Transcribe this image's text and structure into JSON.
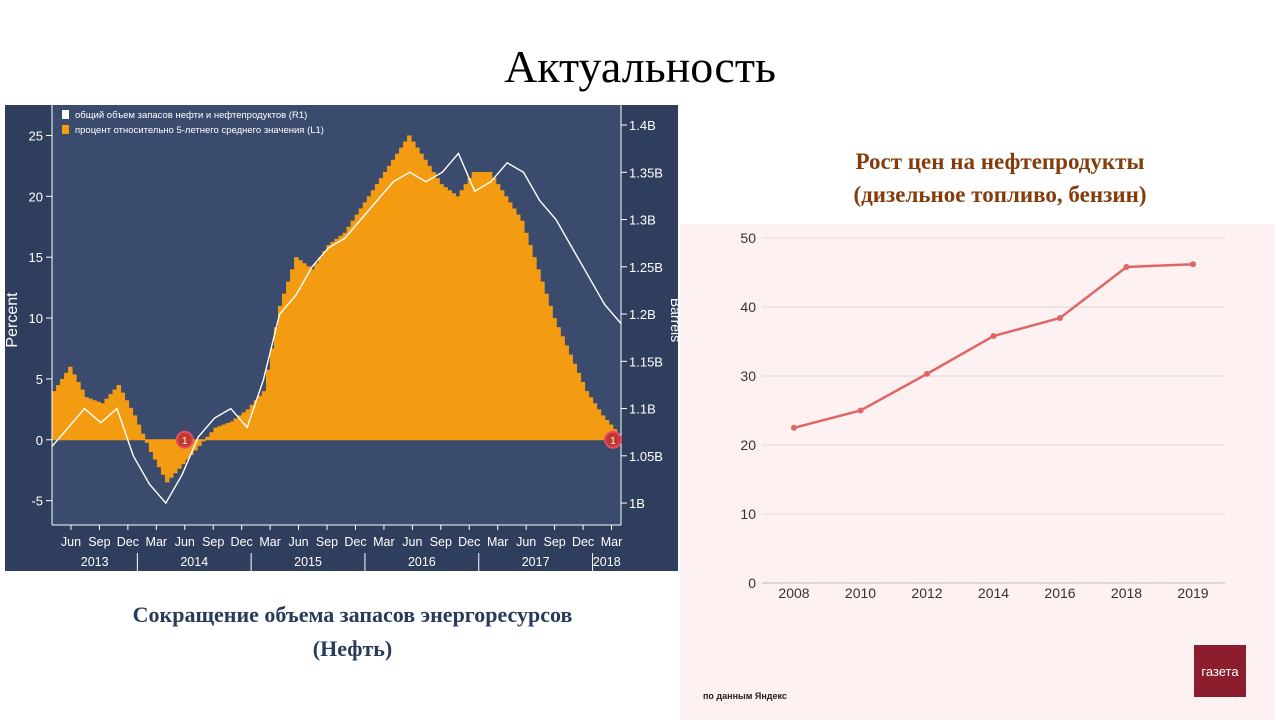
{
  "slide": {
    "title": "Актуальность",
    "left_caption_line1": "Сокращение объема запасов энергоресурсов",
    "left_caption_line2": "(Нефть)",
    "right_title_line1": "Рост цен на нефтепродукты",
    "right_title_line2": "(дизельное топливо, бензин)",
    "right_source": "по данным Яндекс",
    "logo_text": "газета"
  },
  "chart_data": [
    {
      "type": "bar",
      "title": "",
      "ylabel": "Percent",
      "y2label": "Barrels",
      "ylim": [
        -7,
        27.5
      ],
      "y2lim": [
        0.9768,
        1.4212
      ],
      "y_ticks": [
        "25",
        "20",
        "15",
        "10",
        "5",
        "0",
        "-5"
      ],
      "y_tick_values": [
        25,
        20,
        15,
        10,
        5,
        0,
        -5
      ],
      "y2_ticks": [
        "1.4B",
        "1.35B",
        "1.3B",
        "1.25B",
        "1.2B",
        "1.15B",
        "1.1B",
        "1.05B",
        "1B"
      ],
      "y2_tick_values": [
        1.4,
        1.35,
        1.3,
        1.25,
        1.2,
        1.15,
        1.1,
        1.05,
        1.0
      ],
      "x_month_labels": [
        "Jun",
        "Sep",
        "Dec",
        "Mar",
        "Jun",
        "Sep",
        "Dec",
        "Mar",
        "Jun",
        "Sep",
        "Dec",
        "Mar",
        "Jun",
        "Sep",
        "Dec",
        "Mar",
        "Jun",
        "Sep",
        "Dec",
        "Mar"
      ],
      "x_year_labels": [
        "2013",
        "2014",
        "2015",
        "2016",
        "2017",
        "2018"
      ],
      "legend": [
        {
          "label": "общий объем запасов нефти и нефтепродуктов (R1)",
          "color": "#ffffff"
        },
        {
          "label": "процент относительно 5-летнего среднего значения  (L1)",
          "color": "#f39c12"
        }
      ],
      "legend_position": "top-left",
      "x_start": "2013-04",
      "x_end": "2018-04",
      "series": [
        {
          "name": "процент относительно 5-летнего среднего значения  (L1)",
          "color": "#f39c12",
          "values": [
            4,
            6,
            3.5,
            3,
            4.5,
            2,
            -1,
            -3.5,
            -2,
            -0.5,
            1,
            1.5,
            2.5,
            4,
            11,
            15,
            14,
            16,
            17,
            19,
            21,
            23,
            25,
            23,
            21,
            20,
            22,
            22,
            20,
            18,
            14,
            10,
            7,
            4,
            2,
            0.5
          ]
        },
        {
          "name": "общий объем запасов нефти и нефтепродуктов (R1)",
          "color": "#ffffff",
          "axis": "right",
          "values": [
            1.06,
            1.08,
            1.1,
            1.085,
            1.1,
            1.05,
            1.02,
            1.0,
            1.03,
            1.07,
            1.09,
            1.1,
            1.08,
            1.13,
            1.2,
            1.22,
            1.25,
            1.27,
            1.28,
            1.3,
            1.32,
            1.34,
            1.35,
            1.34,
            1.35,
            1.37,
            1.33,
            1.34,
            1.36,
            1.35,
            1.32,
            1.3,
            1.27,
            1.24,
            1.21,
            1.19
          ]
        }
      ],
      "markers": [
        {
          "label": "1",
          "x": "2014-06",
          "y": 0
        },
        {
          "label": "1",
          "x": "2018-04",
          "y": 0
        }
      ],
      "grid": false
    },
    {
      "type": "line",
      "title": "",
      "categories": [
        "2008",
        "2010",
        "2012",
        "2014",
        "2016",
        "2018",
        "2019"
      ],
      "values": [
        22.5,
        25,
        30.3,
        35.8,
        38.4,
        45.8,
        46.2
      ],
      "ylim": [
        0,
        50
      ],
      "y_ticks": [
        "50",
        "40",
        "30",
        "20",
        "10",
        "0"
      ],
      "y_tick_values": [
        50,
        40,
        30,
        20,
        10,
        0
      ],
      "color": "#e06666",
      "grid": true
    }
  ]
}
